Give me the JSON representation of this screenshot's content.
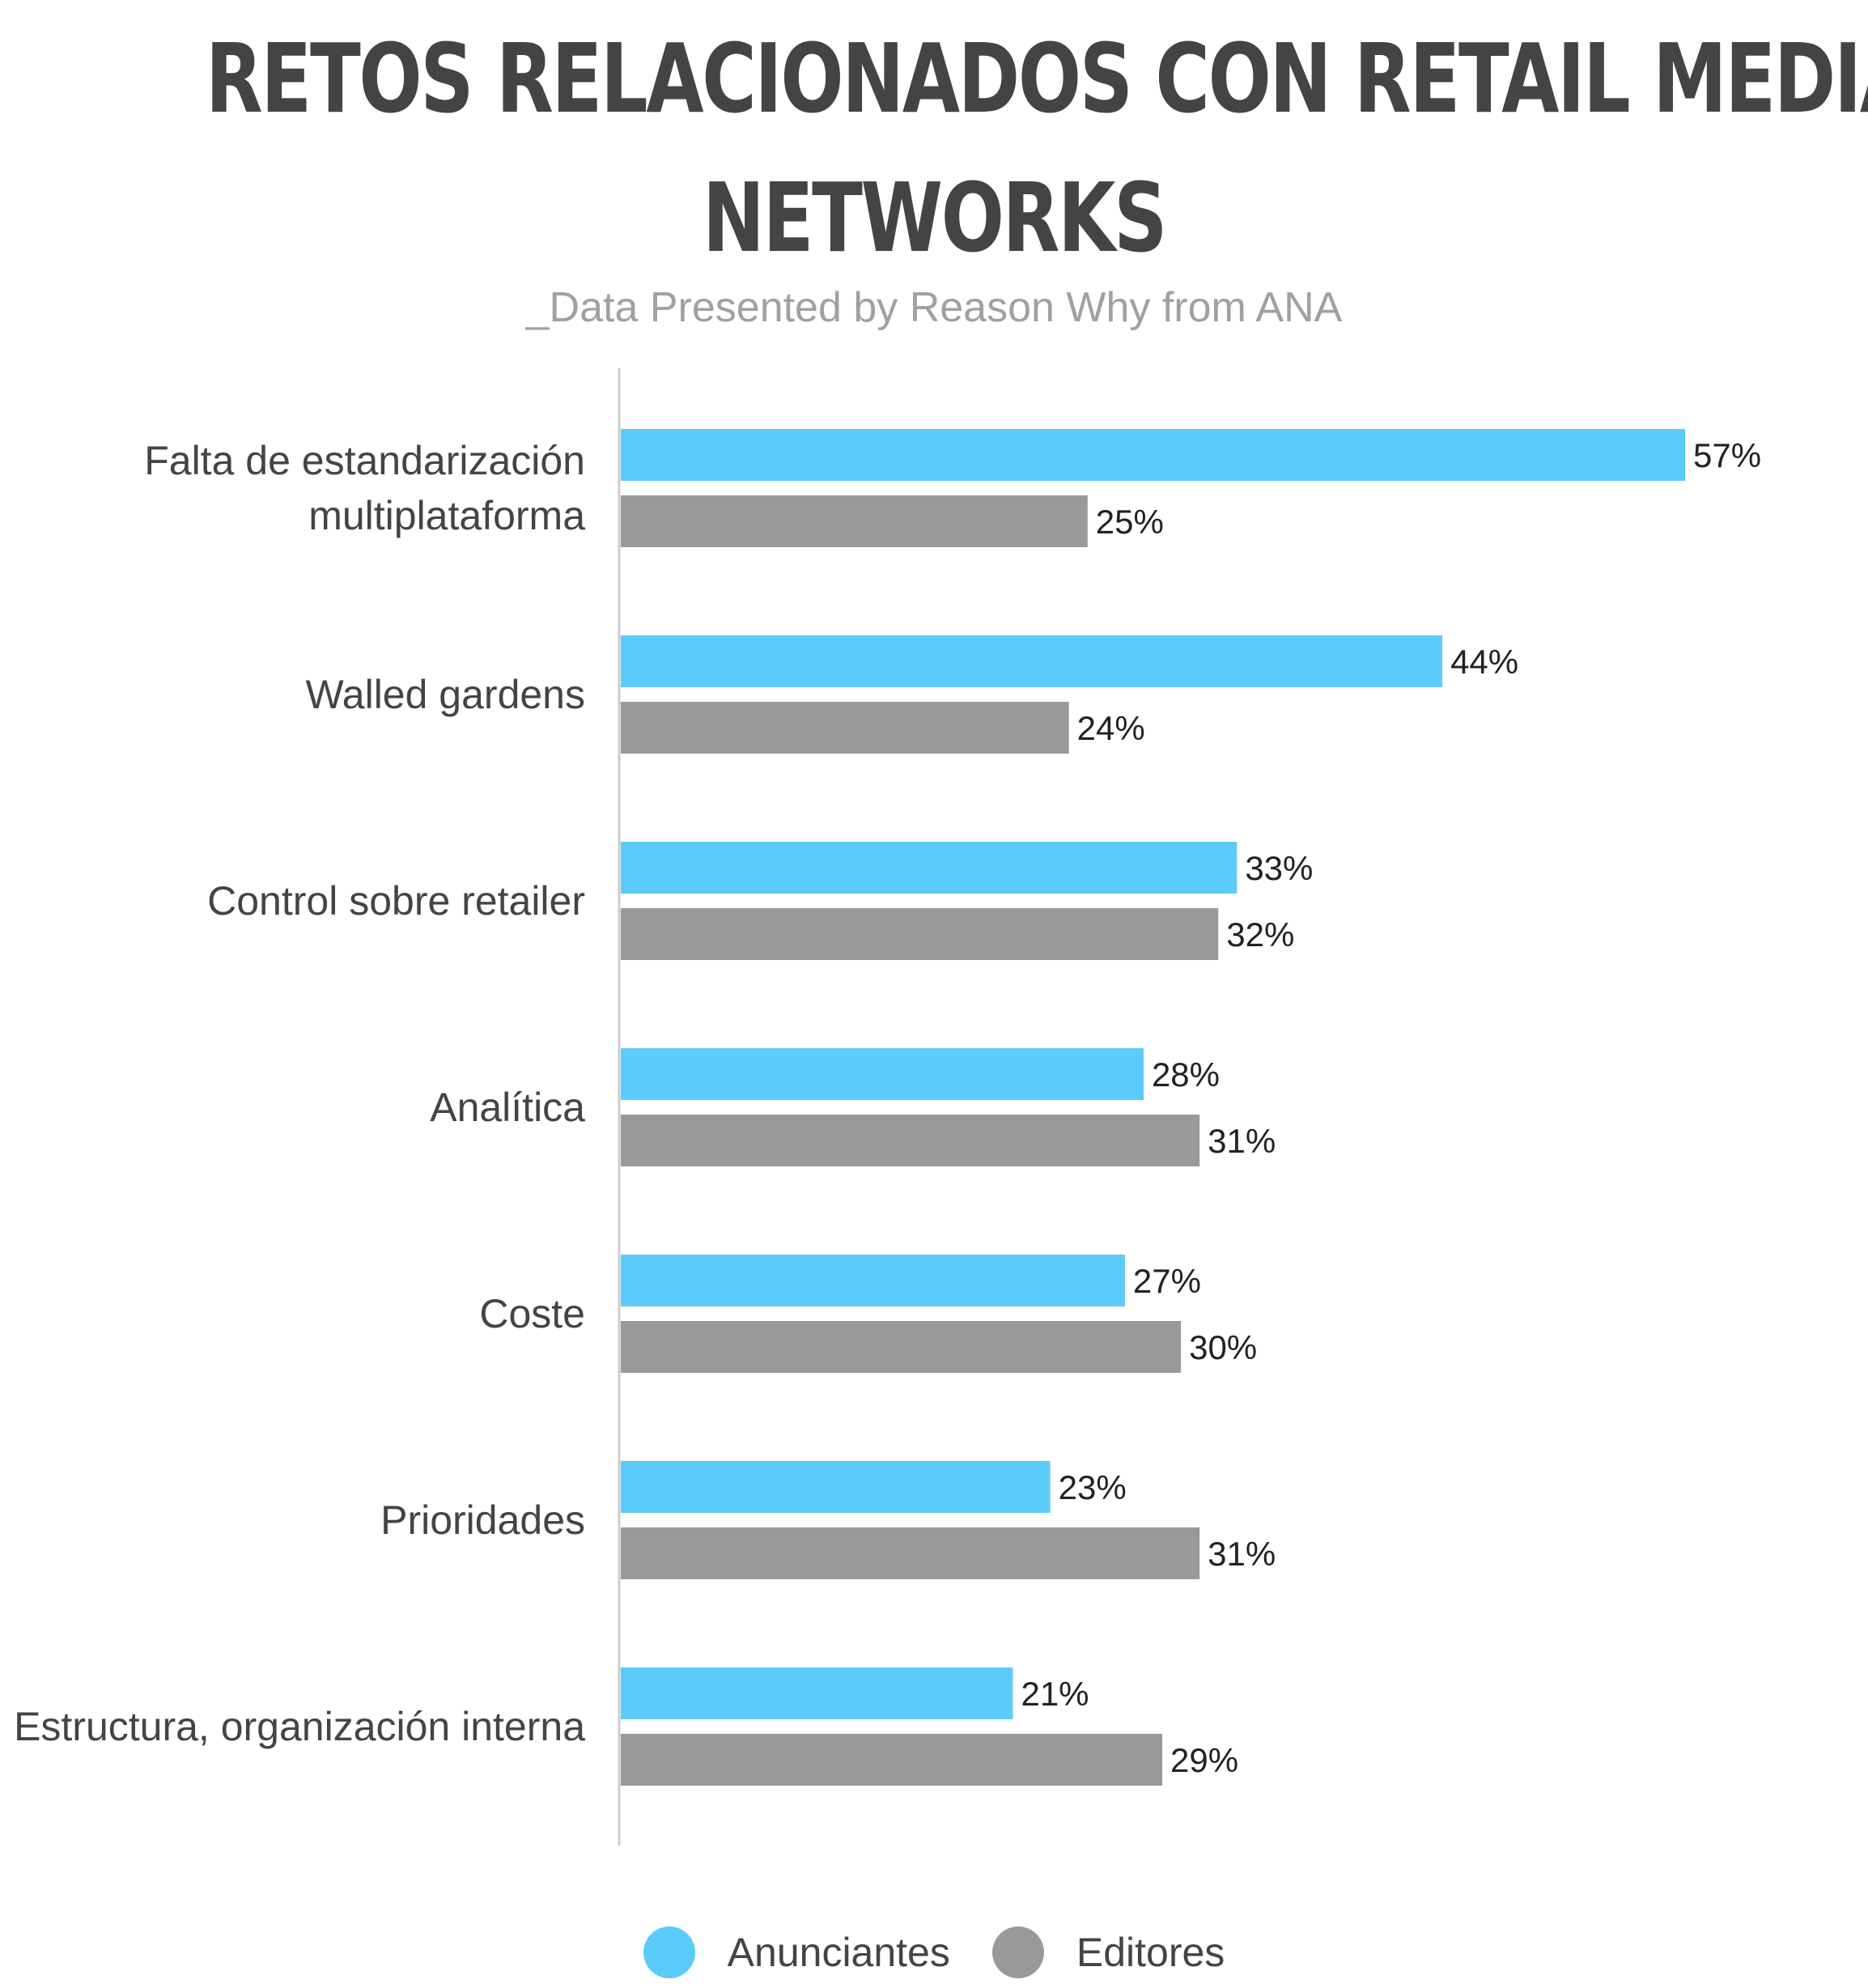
{
  "chart_data": {
    "type": "bar",
    "orientation": "horizontal",
    "title_line1": "RETOS RELACIONADOS CON RETAIL MEDIA",
    "title_line2": "NETWORKS",
    "subtitle": "_Data Presented by Reason Why from ANA",
    "categories": [
      [
        "Falta de estandarización",
        "multiplataforma"
      ],
      [
        "Walled gardens"
      ],
      [
        "Control sobre retailer"
      ],
      [
        "Analítica"
      ],
      [
        "Coste"
      ],
      [
        "Prioridades"
      ],
      [
        "Estructura, organización interna"
      ]
    ],
    "series": [
      {
        "name": "Anunciantes",
        "color": "#5ACBFA",
        "values": [
          57,
          44,
          33,
          28,
          27,
          23,
          21
        ],
        "labels": [
          "57%",
          "44%",
          "33%",
          "28%",
          "27%",
          "23%",
          "21%"
        ]
      },
      {
        "name": "Editores",
        "color": "#999999",
        "values": [
          25,
          24,
          32,
          31,
          30,
          31,
          29
        ],
        "labels": [
          "25%",
          "24%",
          "32%",
          "31%",
          "30%",
          "31%",
          "29%"
        ]
      }
    ],
    "xlim": [
      0,
      57
    ],
    "grid": false,
    "legend_position": "bottom-center"
  }
}
